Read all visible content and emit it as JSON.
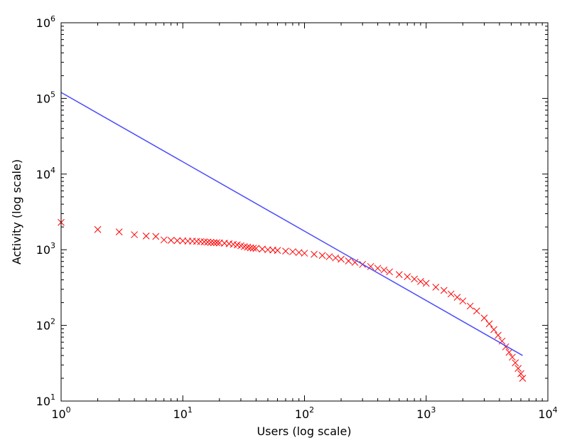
{
  "chart_data": {
    "type": "scatter",
    "title": "",
    "xlabel": "Users (log scale)",
    "ylabel": "Activity (log scale)",
    "xscale": "log",
    "yscale": "log",
    "xlim": [
      1,
      10000
    ],
    "ylim": [
      10,
      1000000
    ],
    "grid": false,
    "legend": "none",
    "x_ticks": [
      {
        "value": 1,
        "base": "10",
        "exp": "0"
      },
      {
        "value": 10,
        "base": "10",
        "exp": "1"
      },
      {
        "value": 100,
        "base": "10",
        "exp": "2"
      },
      {
        "value": 1000,
        "base": "10",
        "exp": "3"
      },
      {
        "value": 10000,
        "base": "10",
        "exp": "4"
      }
    ],
    "y_ticks": [
      {
        "value": 10,
        "base": "10",
        "exp": "1"
      },
      {
        "value": 100,
        "base": "10",
        "exp": "2"
      },
      {
        "value": 1000,
        "base": "10",
        "exp": "3"
      },
      {
        "value": 10000,
        "base": "10",
        "exp": "4"
      },
      {
        "value": 100000,
        "base": "10",
        "exp": "5"
      },
      {
        "value": 1000000,
        "base": "10",
        "exp": "6"
      }
    ],
    "series": [
      {
        "type": "scatter",
        "marker": "x",
        "color": "#ff0000",
        "points": [
          [
            1,
            2300
          ],
          [
            2,
            1850
          ],
          [
            3,
            1720
          ],
          [
            4,
            1580
          ],
          [
            5,
            1520
          ],
          [
            6,
            1500
          ],
          [
            7,
            1350
          ],
          [
            8,
            1330
          ],
          [
            9,
            1320
          ],
          [
            10,
            1310
          ],
          [
            11,
            1300
          ],
          [
            12,
            1300
          ],
          [
            13,
            1290
          ],
          [
            14,
            1280
          ],
          [
            15,
            1270
          ],
          [
            16,
            1260
          ],
          [
            17,
            1250
          ],
          [
            18,
            1240
          ],
          [
            19,
            1240
          ],
          [
            20,
            1230
          ],
          [
            22,
            1220
          ],
          [
            24,
            1200
          ],
          [
            26,
            1180
          ],
          [
            28,
            1160
          ],
          [
            30,
            1130
          ],
          [
            32,
            1100
          ],
          [
            34,
            1080
          ],
          [
            36,
            1060
          ],
          [
            38,
            1050
          ],
          [
            40,
            1040
          ],
          [
            45,
            1020
          ],
          [
            50,
            1000
          ],
          [
            55,
            990
          ],
          [
            60,
            980
          ],
          [
            70,
            960
          ],
          [
            80,
            940
          ],
          [
            90,
            920
          ],
          [
            100,
            900
          ],
          [
            120,
            870
          ],
          [
            140,
            840
          ],
          [
            160,
            810
          ],
          [
            180,
            780
          ],
          [
            200,
            750
          ],
          [
            230,
            710
          ],
          [
            260,
            680
          ],
          [
            300,
            640
          ],
          [
            350,
            600
          ],
          [
            400,
            570
          ],
          [
            450,
            540
          ],
          [
            500,
            510
          ],
          [
            600,
            470
          ],
          [
            700,
            440
          ],
          [
            800,
            410
          ],
          [
            900,
            380
          ],
          [
            1000,
            360
          ],
          [
            1200,
            320
          ],
          [
            1400,
            290
          ],
          [
            1600,
            260
          ],
          [
            1800,
            235
          ],
          [
            2000,
            210
          ],
          [
            2300,
            180
          ],
          [
            2600,
            155
          ],
          [
            3000,
            125
          ],
          [
            3300,
            105
          ],
          [
            3600,
            88
          ],
          [
            3900,
            74
          ],
          [
            4200,
            62
          ],
          [
            4500,
            52
          ],
          [
            4800,
            44
          ],
          [
            5100,
            38
          ],
          [
            5400,
            32
          ],
          [
            5700,
            27
          ],
          [
            6000,
            23
          ],
          [
            6200,
            20
          ]
        ]
      },
      {
        "type": "line",
        "color": "#4b4bff",
        "x": [
          1,
          6200
        ],
        "y": [
          120000,
          40
        ]
      }
    ]
  }
}
